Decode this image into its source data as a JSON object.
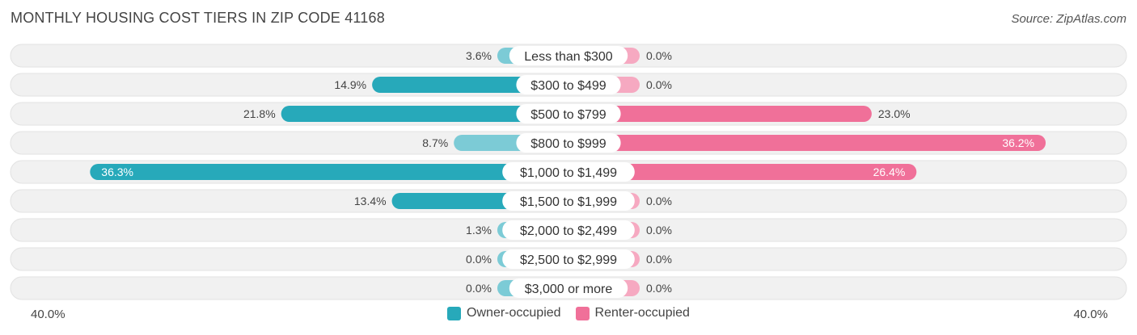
{
  "title": "MONTHLY HOUSING COST TIERS IN ZIP CODE 41168",
  "source": "Source: ZipAtlas.com",
  "colors": {
    "owner": "#27A9BA",
    "owner_light": "#7CCBD6",
    "renter": "#F07099",
    "renter_light": "#F6A9C1",
    "row_bg": "#F1F1F1"
  },
  "legend": {
    "owner_label": "Owner-occupied",
    "renter_label": "Renter-occupied"
  },
  "axis": {
    "left_label": "40.0%",
    "right_label": "40.0%"
  },
  "chart_data": {
    "type": "bar",
    "orientation": "horizontal-diverging",
    "categories": [
      "Less than $300",
      "$300 to $499",
      "$500 to $799",
      "$800 to $999",
      "$1,000 to $1,499",
      "$1,500 to $1,999",
      "$2,000 to $2,499",
      "$2,500 to $2,999",
      "$3,000 or more"
    ],
    "series": [
      {
        "name": "Owner-occupied",
        "values": [
          3.6,
          14.9,
          21.8,
          8.7,
          36.3,
          13.4,
          1.3,
          0.0,
          0.0
        ],
        "labels": [
          "3.6%",
          "14.9%",
          "21.8%",
          "8.7%",
          "36.3%",
          "13.4%",
          "1.3%",
          "0.0%",
          "0.0%"
        ]
      },
      {
        "name": "Renter-occupied",
        "values": [
          0.0,
          0.0,
          23.0,
          36.2,
          26.4,
          0.0,
          0.0,
          0.0,
          0.0
        ],
        "labels": [
          "0.0%",
          "0.0%",
          "23.0%",
          "36.2%",
          "26.4%",
          "0.0%",
          "0.0%",
          "0.0%",
          "0.0%"
        ]
      }
    ],
    "xlim": [
      -40,
      40
    ],
    "legend_position": "bottom-center"
  }
}
